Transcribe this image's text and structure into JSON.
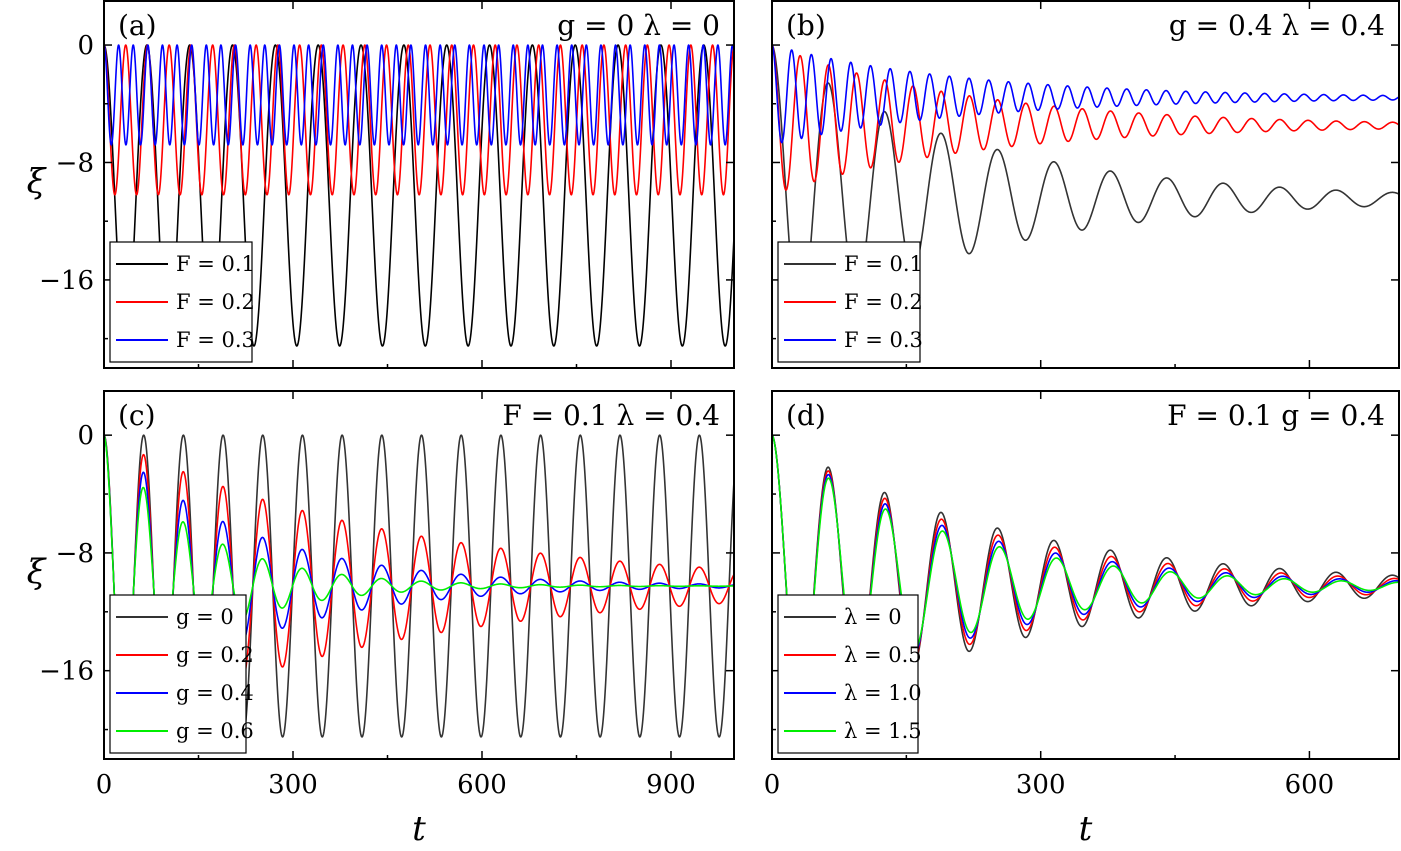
{
  "chart_data": [
    {
      "type": "line",
      "panel": "(a)",
      "params": "g = 0  λ = 0",
      "xlabel": "t",
      "ylabel": "ξ",
      "xlim": [
        0,
        1000
      ],
      "ylim": [
        -22,
        3
      ],
      "xticks": [
        0,
        300,
        600,
        900
      ],
      "yticks": [
        0,
        -8,
        -16
      ],
      "legend_position": "lower-left",
      "series": [
        {
          "name": "F = 0.1",
          "color": "#000000",
          "amplitude": 20.5,
          "period": 68,
          "decay": 0,
          "floor": -20.5,
          "start_dip": 20.5
        },
        {
          "name": "F = 0.2",
          "color": "#ff0000",
          "amplitude": 10.2,
          "period": 34.5,
          "decay": 0,
          "floor": -10.2
        },
        {
          "name": "F = 0.3",
          "color": "#0000ff",
          "amplitude": 6.8,
          "period": 23.2,
          "decay": 0,
          "floor": -6.8
        }
      ]
    },
    {
      "type": "line",
      "panel": "(b)",
      "params": "g = 0.4  λ = 0.4",
      "xlabel": "t",
      "ylabel": "",
      "xlim": [
        0,
        700
      ],
      "ylim": [
        -22,
        3
      ],
      "xticks": [
        0,
        300,
        600
      ],
      "yticks": [
        0,
        -8,
        -16
      ],
      "legend_position": "lower-left",
      "series": [
        {
          "name": "F = 0.1",
          "color": "#333333",
          "amplitude": 20.5,
          "period": 63,
          "decay": 0.0045,
          "settle": -10.5
        },
        {
          "name": "F = 0.2",
          "color": "#ff0000",
          "amplitude": 10.2,
          "period": 31.5,
          "decay": 0.0045,
          "settle": -5.5
        },
        {
          "name": "F = 0.3",
          "color": "#0000ff",
          "amplitude": 6.8,
          "period": 22,
          "decay": 0.0045,
          "settle": -3.6
        }
      ]
    },
    {
      "type": "line",
      "panel": "(c)",
      "params": "F = 0.1  λ = 0.4",
      "xlabel": "t",
      "ylabel": "ξ",
      "xlim": [
        0,
        1000
      ],
      "ylim": [
        -22,
        3
      ],
      "xticks": [
        0,
        300,
        600,
        900
      ],
      "yticks": [
        0,
        -8,
        -16
      ],
      "legend_position": "lower-left",
      "series": [
        {
          "name": "g = 0",
          "color": "#333333",
          "amplitude": 20.5,
          "period": 63,
          "decay": 0,
          "settle": -10.25
        },
        {
          "name": "g = 0.2",
          "color": "#ff0000",
          "amplitude": 20.5,
          "period": 63,
          "decay": 0.0022,
          "settle": -10.25
        },
        {
          "name": "g = 0.4",
          "color": "#0000ff",
          "amplitude": 20.5,
          "period": 63,
          "decay": 0.0045,
          "settle": -10.25
        },
        {
          "name": "g = 0.6",
          "color": "#00ee00",
          "amplitude": 20.5,
          "period": 63,
          "decay": 0.0068,
          "settle": -10.25
        }
      ]
    },
    {
      "type": "line",
      "panel": "(d)",
      "params": "F = 0.1  g = 0.4",
      "xlabel": "t",
      "ylabel": "",
      "xlim": [
        0,
        700
      ],
      "ylim": [
        -22,
        3
      ],
      "xticks": [
        0,
        300,
        600
      ],
      "yticks": [
        0,
        -8,
        -16
      ],
      "legend_position": "lower-left",
      "series": [
        {
          "name": "λ = 0",
          "color": "#333333",
          "amplitude": 20.5,
          "period": 63,
          "decay": 0.0038,
          "settle": -10.25
        },
        {
          "name": "λ = 0.5",
          "color": "#ff0000",
          "amplitude": 20.5,
          "period": 63.2,
          "decay": 0.0043,
          "settle": -10.25
        },
        {
          "name": "λ = 1.0",
          "color": "#0000ff",
          "amplitude": 20.5,
          "period": 63.4,
          "decay": 0.0048,
          "settle": -10.25
        },
        {
          "name": "λ = 1.5",
          "color": "#00ee00",
          "amplitude": 20.5,
          "period": 63.6,
          "decay": 0.0053,
          "settle": -10.25
        }
      ]
    }
  ]
}
